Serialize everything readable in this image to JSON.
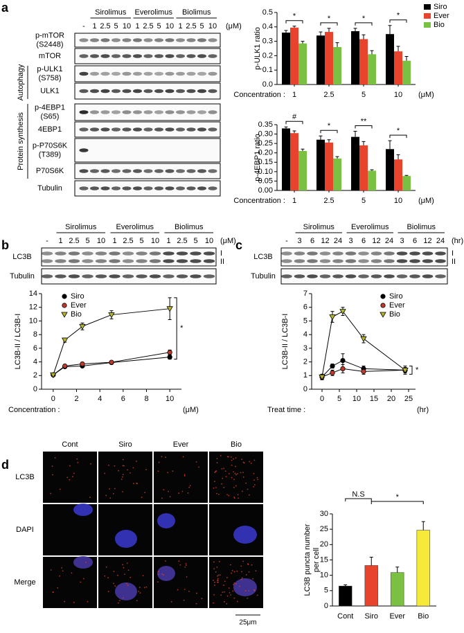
{
  "panels": [
    "a",
    "b",
    "c",
    "d"
  ],
  "blot_a": {
    "groups": [
      "Sirolimus",
      "Everolimus",
      "Biolimus"
    ],
    "lanes": [
      "-",
      "1",
      "2.5",
      "5",
      "10",
      "1",
      "2.5",
      "5",
      "10",
      "1",
      "2.5",
      "5",
      "10"
    ],
    "unit": "(μM)",
    "rows": [
      [
        "p-mTOR",
        "(S2448)"
      ],
      [
        "mTOR"
      ],
      [
        "p-ULK1",
        "(S758)"
      ],
      [
        "ULK1"
      ],
      [
        "p-4EBP1",
        "(S65)"
      ],
      [
        "4EBP1"
      ],
      [
        "p-P70S6K",
        "(T389)"
      ],
      [
        "P70S6K"
      ],
      [
        "Tubulin"
      ]
    ],
    "sections": [
      "Autophagy",
      "Protein synthesis"
    ]
  },
  "blot_b": {
    "groups": [
      "Sirolimus",
      "Everolimus",
      "Biolimus"
    ],
    "lanes": [
      "-",
      "1",
      "2.5",
      "5",
      "10",
      "1",
      "2.5",
      "5",
      "10",
      "1",
      "2.5",
      "5",
      "10"
    ],
    "unit": "(μM)",
    "rows": [
      "LC3B",
      "Tubulin"
    ],
    "bands": [
      "I",
      "II"
    ]
  },
  "blot_c": {
    "groups": [
      "Sirolimus",
      "Everolimus",
      "Biolimus"
    ],
    "lanes": [
      "-",
      "3",
      "6",
      "12",
      "24",
      "3",
      "6",
      "12",
      "24",
      "3",
      "6",
      "12",
      "24"
    ],
    "unit": "(hr)",
    "rows": [
      "LC3B",
      "Tubulin"
    ],
    "bands": [
      "I",
      "II"
    ]
  },
  "imaging": {
    "columns": [
      "Cont",
      "Siro",
      "Ever",
      "Bio"
    ],
    "rows": [
      "LC3B",
      "DAPI",
      "Merge"
    ],
    "scale": "25μm"
  },
  "chart_data": [
    {
      "type": "bar",
      "ylabel": "p-ULK1 ratio",
      "xlabel": "Concentration :",
      "x_unit": "(μM)",
      "categories": [
        "1",
        "2.5",
        "5",
        "10"
      ],
      "legend": "upper right",
      "ylim": [
        0,
        0.5
      ],
      "yticks": [
        {
          "value": 0,
          "label": "0.0"
        },
        0.1,
        0.2,
        0.3,
        0.4,
        0.5
      ],
      "series": [
        {
          "name": "Siro",
          "color": "#000000",
          "values": [
            0.36,
            0.34,
            0.37,
            0.35
          ],
          "errors": [
            0.015,
            0.025,
            0.02,
            0.06
          ]
        },
        {
          "name": "Ever",
          "color": "#e8432d",
          "values": [
            0.395,
            0.365,
            0.315,
            0.23
          ],
          "errors": [
            0.01,
            0.025,
            0.03,
            0.035
          ]
        },
        {
          "name": "Bio",
          "color": "#7ac143",
          "values": [
            0.285,
            0.26,
            0.21,
            0.165
          ],
          "errors": [
            0.015,
            0.03,
            0.025,
            0.03
          ]
        }
      ],
      "annotations": [
        "*",
        "*",
        "*",
        "*"
      ]
    },
    {
      "type": "bar",
      "ylabel": "p-4EBP1 ratio",
      "xlabel": "Concentration :",
      "x_unit": "(μM)",
      "categories": [
        "1",
        "2.5",
        "5",
        "10"
      ],
      "ylim": [
        0,
        0.35
      ],
      "yticks": [
        {
          "value": 0,
          "label": "0.00"
        },
        0.05,
        {
          "value": 0.1,
          "label": "0.10"
        },
        0.15,
        {
          "value": 0.2,
          "label": "0.20"
        },
        0.25,
        {
          "value": 0.3,
          "label": "0.30"
        },
        0.35
      ],
      "series": [
        {
          "name": "Siro",
          "color": "#000000",
          "values": [
            0.33,
            0.27,
            0.285,
            0.22
          ],
          "errors": [
            0.008,
            0.02,
            0.03,
            0.045
          ]
        },
        {
          "name": "Ever",
          "color": "#e8432d",
          "values": [
            0.305,
            0.255,
            0.24,
            0.165
          ],
          "errors": [
            0.012,
            0.015,
            0.02,
            0.025
          ]
        },
        {
          "name": "Bio",
          "color": "#7ac143",
          "values": [
            0.21,
            0.17,
            0.105,
            0.077
          ],
          "errors": [
            0.01,
            0.01,
            0.005,
            0.003
          ]
        }
      ],
      "annotations": [
        "#",
        "*",
        "**",
        "*"
      ]
    },
    {
      "type": "line",
      "ylabel": "LC3B-II / LC3B-I",
      "xlabel": "Concentration :",
      "x_unit": "(μM)",
      "x": [
        0,
        1,
        2.5,
        5,
        10
      ],
      "xlim": [
        -1,
        11
      ],
      "xticks": [
        0,
        2,
        4,
        6,
        8,
        10
      ],
      "ylim": [
        0,
        14
      ],
      "yticks": [
        0,
        2,
        4,
        6,
        8,
        10,
        12,
        14
      ],
      "legend": "upper left",
      "series": [
        {
          "name": "Siro",
          "color": "#000000",
          "marker": "o",
          "values": [
            2.1,
            3.3,
            3.4,
            3.9,
            4.7
          ],
          "errors": [
            0.1,
            0.2,
            0.2,
            0.15,
            0.3
          ]
        },
        {
          "name": "Ever",
          "color": "#c0392b",
          "marker": "o",
          "values": [
            2.1,
            3.4,
            3.7,
            3.95,
            5.4
          ],
          "errors": [
            0.1,
            0.2,
            0.25,
            0.15,
            0.35
          ]
        },
        {
          "name": "Bio",
          "color": "#b5b52a",
          "marker": "v",
          "values": [
            2.1,
            7.2,
            9.2,
            10.9,
            11.8
          ],
          "errors": [
            0.1,
            0.3,
            0.5,
            0.6,
            1.6
          ]
        }
      ],
      "annotations": [
        "*"
      ]
    },
    {
      "type": "line",
      "ylabel": "LC3B-II / LC3B-I",
      "xlabel": "Treat time :",
      "x_unit": "(hr)",
      "x": [
        0,
        3,
        6,
        12,
        24
      ],
      "xlim": [
        -3,
        27
      ],
      "xticks": [
        0,
        5,
        10,
        15,
        20,
        25
      ],
      "ylim": [
        0,
        7
      ],
      "yticks": [
        0,
        1,
        2,
        3,
        4,
        5,
        6,
        7
      ],
      "legend": "upper right",
      "series": [
        {
          "name": "Siro",
          "color": "#000000",
          "marker": "o",
          "values": [
            0.9,
            1.7,
            2.1,
            1.5,
            1.4
          ],
          "errors": [
            0.2,
            0.15,
            0.5,
            0.2,
            0.2
          ]
        },
        {
          "name": "Ever",
          "color": "#c0392b",
          "marker": "o",
          "values": [
            0.9,
            1.2,
            1.5,
            1.3,
            1.4
          ],
          "errors": [
            0.15,
            0.2,
            0.3,
            0.2,
            0.2
          ]
        },
        {
          "name": "Bio",
          "color": "#b5b52a",
          "marker": "v",
          "values": [
            0.9,
            5.3,
            5.7,
            3.7,
            1.4
          ],
          "errors": [
            0.2,
            0.4,
            0.3,
            0.3,
            0.3
          ]
        }
      ],
      "annotations": [
        "*"
      ]
    },
    {
      "type": "bar",
      "ylabel": [
        "LC3B puncta number",
        "per cell"
      ],
      "categories": [
        "Cont",
        "Siro",
        "Ever",
        "Bio"
      ],
      "values": [
        6.5,
        13.2,
        10.9,
        24.7
      ],
      "errors": [
        0.4,
        2.7,
        1.8,
        2.8
      ],
      "colors": [
        "#000000",
        "#e8432d",
        "#7ac143",
        "#f5e93a"
      ],
      "ylim": [
        0,
        30
      ],
      "yticks": [
        0,
        5,
        10,
        15,
        20,
        25,
        30
      ],
      "annotations": [
        "N.S",
        "*"
      ]
    }
  ]
}
